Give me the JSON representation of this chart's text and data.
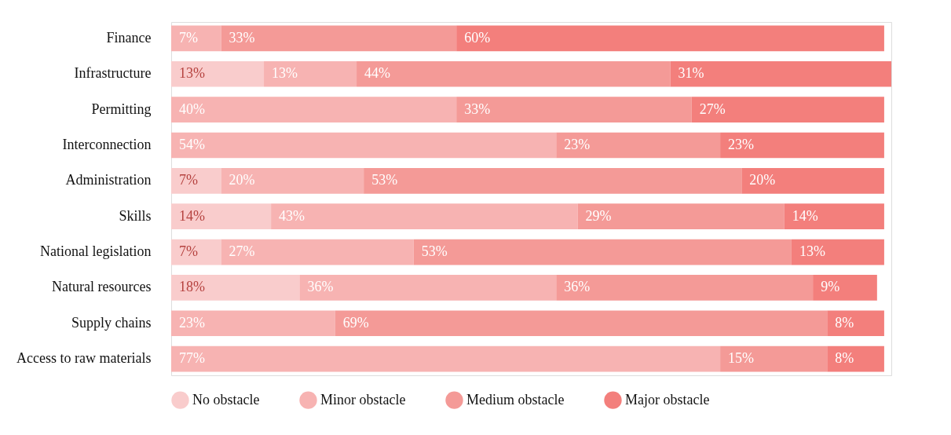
{
  "chart_data": {
    "type": "bar",
    "orientation": "horizontal",
    "stacked": true,
    "legend": "bottom",
    "categories": [
      "Finance",
      "Infrastructure",
      "Permitting",
      "Interconnection",
      "Administration",
      "Skills",
      "National legislation",
      "Natural resources",
      "Supply chains",
      "Access to raw materials"
    ],
    "series": [
      {
        "name": "No obstacle",
        "color": "#f9cccc",
        "values": [
          null,
          13,
          null,
          null,
          7,
          14,
          7,
          18,
          null,
          null
        ],
        "value_labels": [
          null,
          "13%",
          null,
          null,
          "7%",
          "14%",
          "7%",
          "18%",
          null,
          null
        ]
      },
      {
        "name": "Minor obstacle",
        "color": "#f7b3b2",
        "values": [
          7,
          13,
          40,
          54,
          20,
          43,
          27,
          36,
          23,
          77
        ],
        "value_labels": [
          "7%",
          "13%",
          "40%",
          "54%",
          "20%",
          "43%",
          "27%",
          "36%",
          "23%",
          "77%"
        ]
      },
      {
        "name": "Medium obstacle",
        "color": "#f49a97",
        "values": [
          33,
          44,
          33,
          23,
          53,
          29,
          53,
          36,
          69,
          15
        ],
        "value_labels": [
          "33%",
          "44%",
          "33%",
          "23%",
          "53%",
          "29%",
          "53%",
          "36%",
          "69%",
          "15%"
        ]
      },
      {
        "name": "Major obstacle",
        "color": "#f37f7c",
        "values": [
          60,
          31,
          27,
          23,
          20,
          14,
          13,
          9,
          8,
          8
        ],
        "value_labels": [
          "60%",
          "31%",
          "27%",
          "23%",
          "20%",
          "14%",
          "13%",
          "9%",
          "8%",
          "8%"
        ]
      }
    ]
  }
}
